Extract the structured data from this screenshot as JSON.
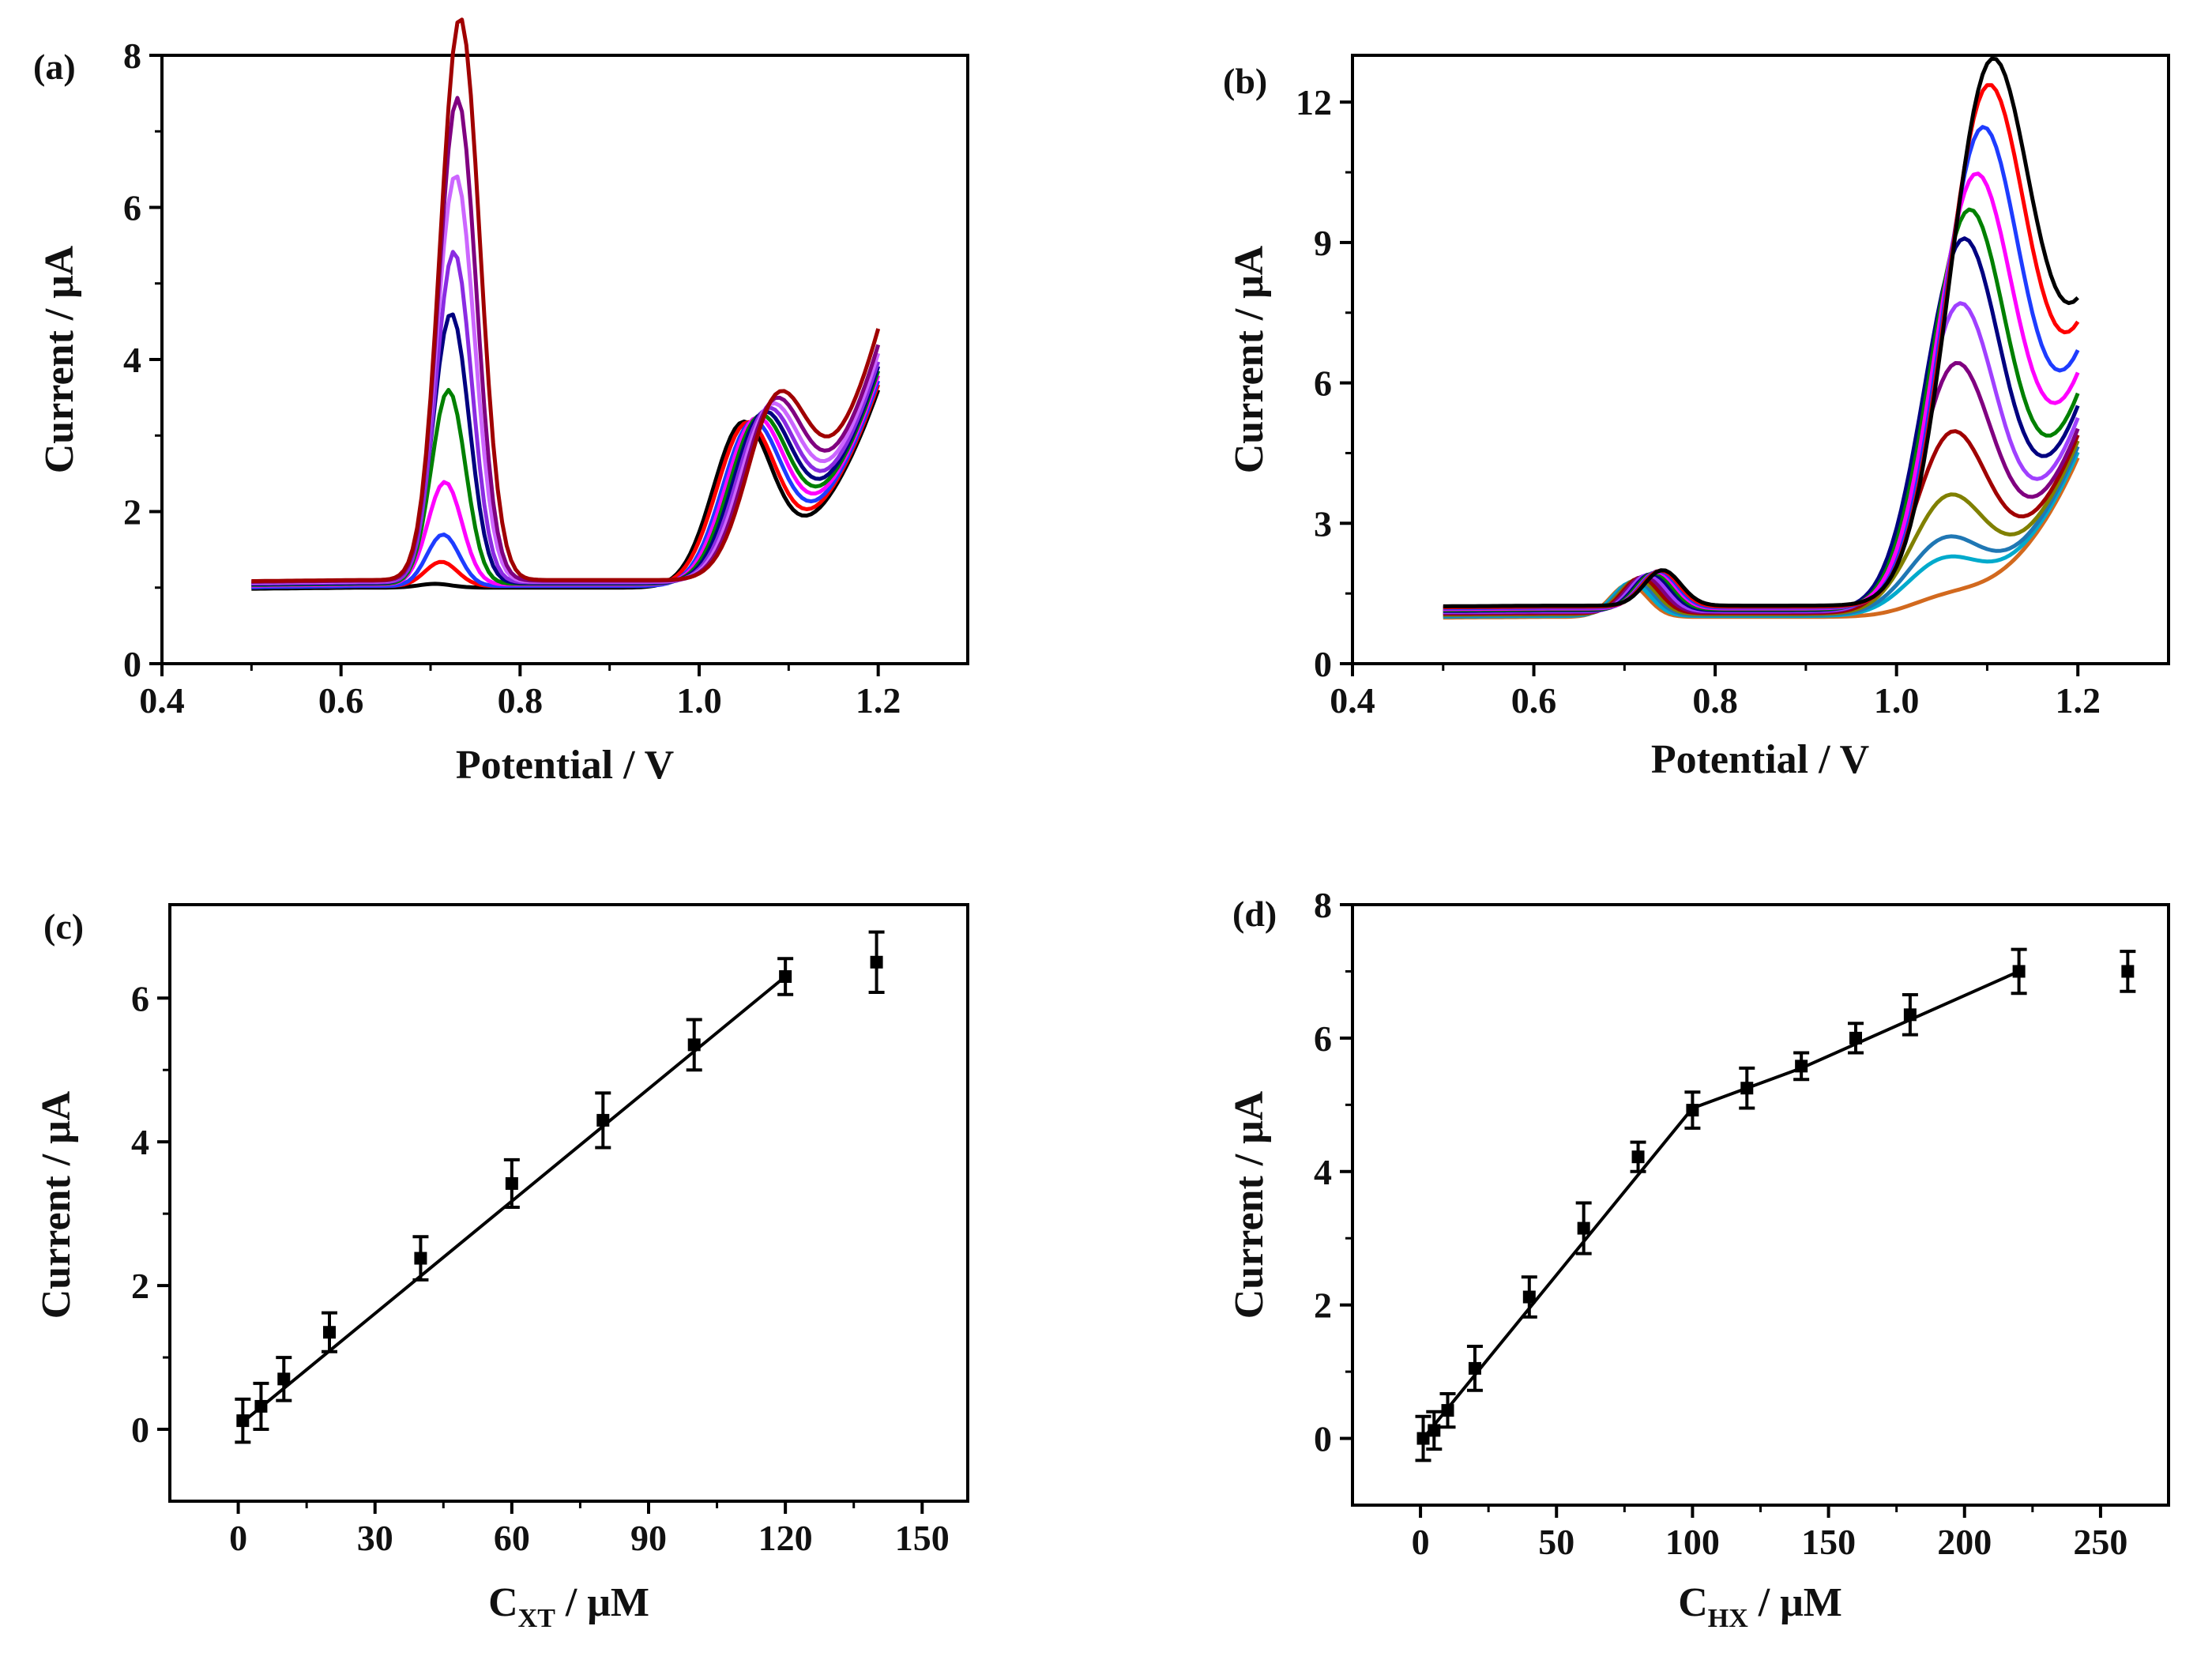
{
  "chart_data": [
    {
      "panel": "(a)",
      "type": "line",
      "xlabel": "Potential / V",
      "ylabel": "Current / μA",
      "xlim": [
        0.4,
        1.3
      ],
      "ylim": [
        0,
        8
      ],
      "xticks": [
        "0.4",
        "0.6",
        "0.8",
        "1.0",
        "1.2"
      ],
      "yticks": [
        "0",
        "2",
        "4",
        "6",
        "8"
      ],
      "series": [
        {
          "color": "#000000",
          "base": 1.0,
          "peak1": {
            "x": 0.705,
            "h": 0.05,
            "w": 0.018
          },
          "peak2": {
            "x": 1.048,
            "h": 2.05,
            "w": 0.033
          },
          "tail": 2.6
        },
        {
          "color": "#ff0000",
          "base": 1.02,
          "peak1": {
            "x": 0.712,
            "h": 0.32,
            "w": 0.018
          },
          "peak2": {
            "x": 1.052,
            "h": 2.0,
            "w": 0.033
          },
          "tail": 2.65
        },
        {
          "color": "#1e3cff",
          "base": 1.02,
          "peak1": {
            "x": 0.714,
            "h": 0.68,
            "w": 0.018
          },
          "peak2": {
            "x": 1.058,
            "h": 1.98,
            "w": 0.033
          },
          "tail": 2.7
        },
        {
          "color": "#ff00ff",
          "base": 1.04,
          "peak1": {
            "x": 0.716,
            "h": 1.35,
            "w": 0.019
          },
          "peak2": {
            "x": 1.062,
            "h": 1.98,
            "w": 0.033
          },
          "tail": 2.75
        },
        {
          "color": "#008000",
          "base": 1.05,
          "peak1": {
            "x": 0.72,
            "h": 2.55,
            "w": 0.019
          },
          "peak2": {
            "x": 1.066,
            "h": 1.97,
            "w": 0.033
          },
          "tail": 2.8
        },
        {
          "color": "#000080",
          "base": 1.06,
          "peak1": {
            "x": 0.723,
            "h": 3.55,
            "w": 0.02
          },
          "peak2": {
            "x": 1.07,
            "h": 1.97,
            "w": 0.033
          },
          "tail": 2.85
        },
        {
          "color": "#8a2be2",
          "base": 1.07,
          "peak1": {
            "x": 0.726,
            "h": 4.35,
            "w": 0.02
          },
          "peak2": {
            "x": 1.074,
            "h": 1.97,
            "w": 0.033
          },
          "tail": 2.9
        },
        {
          "color": "#cc66ff",
          "base": 1.08,
          "peak1": {
            "x": 0.728,
            "h": 5.35,
            "w": 0.021
          },
          "peak2": {
            "x": 1.078,
            "h": 1.97,
            "w": 0.033
          },
          "tail": 3.0
        },
        {
          "color": "#800080",
          "base": 1.09,
          "peak1": {
            "x": 0.73,
            "h": 6.35,
            "w": 0.021
          },
          "peak2": {
            "x": 1.082,
            "h": 1.98,
            "w": 0.033
          },
          "tail": 3.1
        },
        {
          "color": "#a00000",
          "base": 1.1,
          "peak1": {
            "x": 0.733,
            "h": 7.4,
            "w": 0.022
          },
          "peak2": {
            "x": 1.086,
            "h": 1.98,
            "w": 0.033
          },
          "tail": 3.3
        }
      ]
    },
    {
      "panel": "(b)",
      "type": "line",
      "xlabel": "Potential / V",
      "ylabel": "Current / μA",
      "xlim": [
        0.4,
        1.3
      ],
      "ylim": [
        0,
        13
      ],
      "xticks": [
        "0.4",
        "0.6",
        "0.8",
        "1.0",
        "1.2"
      ],
      "yticks": [
        "0",
        "3",
        "6",
        "9",
        "12"
      ],
      "series": [
        {
          "color": "#d2691e",
          "base": 1.0,
          "peak1": {
            "x": 0.705,
            "h": 0.7,
            "w": 0.02
          },
          "peak2": {
            "x": 1.05,
            "h": 0.3,
            "w": 0.04
          },
          "tail": 3.4
        },
        {
          "color": "#00aacc",
          "base": 1.02,
          "peak1": {
            "x": 0.708,
            "h": 0.72,
            "w": 0.02
          },
          "peak2": {
            "x": 1.05,
            "h": 1.05,
            "w": 0.04
          },
          "tail": 3.5
        },
        {
          "color": "#1f77b4",
          "base": 1.04,
          "peak1": {
            "x": 0.712,
            "h": 0.74,
            "w": 0.02
          },
          "peak2": {
            "x": 1.052,
            "h": 1.45,
            "w": 0.04
          },
          "tail": 3.6
        },
        {
          "color": "#808000",
          "base": 1.06,
          "peak1": {
            "x": 0.715,
            "h": 0.75,
            "w": 0.02
          },
          "peak2": {
            "x": 1.056,
            "h": 2.3,
            "w": 0.04
          },
          "tail": 3.7
        },
        {
          "color": "#a00000",
          "base": 1.08,
          "peak1": {
            "x": 0.718,
            "h": 0.76,
            "w": 0.02
          },
          "peak2": {
            "x": 1.06,
            "h": 3.6,
            "w": 0.04
          },
          "tail": 3.8
        },
        {
          "color": "#800080",
          "base": 1.1,
          "peak1": {
            "x": 0.722,
            "h": 0.77,
            "w": 0.02
          },
          "peak2": {
            "x": 1.064,
            "h": 5.0,
            "w": 0.041
          },
          "tail": 3.9
        },
        {
          "color": "#a040ff",
          "base": 1.12,
          "peak1": {
            "x": 0.726,
            "h": 0.78,
            "w": 0.02
          },
          "peak2": {
            "x": 1.068,
            "h": 6.2,
            "w": 0.041
          },
          "tail": 4.1
        },
        {
          "color": "#000080",
          "base": 1.14,
          "peak1": {
            "x": 0.73,
            "h": 0.78,
            "w": 0.02
          },
          "peak2": {
            "x": 1.072,
            "h": 7.5,
            "w": 0.042
          },
          "tail": 4.3
        },
        {
          "color": "#008000",
          "base": 1.16,
          "peak1": {
            "x": 0.733,
            "h": 0.78,
            "w": 0.02
          },
          "peak2": {
            "x": 1.078,
            "h": 8.0,
            "w": 0.042
          },
          "tail": 4.5
        },
        {
          "color": "#ff00ff",
          "base": 1.18,
          "peak1": {
            "x": 0.736,
            "h": 0.78,
            "w": 0.02
          },
          "peak2": {
            "x": 1.085,
            "h": 8.6,
            "w": 0.043
          },
          "tail": 4.8
        },
        {
          "color": "#1e3cff",
          "base": 1.2,
          "peak1": {
            "x": 0.738,
            "h": 0.78,
            "w": 0.02
          },
          "peak2": {
            "x": 1.092,
            "h": 9.4,
            "w": 0.043
          },
          "tail": 5.1
        },
        {
          "color": "#ff0000",
          "base": 1.22,
          "peak1": {
            "x": 0.74,
            "h": 0.77,
            "w": 0.02
          },
          "peak2": {
            "x": 1.098,
            "h": 10.1,
            "w": 0.044
          },
          "tail": 5.4
        },
        {
          "color": "#000000",
          "base": 1.24,
          "peak1": {
            "x": 0.742,
            "h": 0.76,
            "w": 0.02
          },
          "peak2": {
            "x": 1.102,
            "h": 10.5,
            "w": 0.045
          },
          "tail": 5.6
        }
      ]
    },
    {
      "panel": "(c)",
      "type": "scatter",
      "xlabel_main": "C",
      "xlabel_sub": "XT",
      "xlabel_unit": " / μM",
      "ylabel": "Current / μA",
      "xlim": [
        -15,
        160
      ],
      "ylim": [
        -1,
        7.3
      ],
      "xticks": [
        "0",
        "30",
        "60",
        "90",
        "120",
        "150"
      ],
      "yticks": [
        "0",
        "2",
        "4",
        "6"
      ],
      "points": [
        {
          "x": 1,
          "y": 0.12,
          "err": 0.3
        },
        {
          "x": 5,
          "y": 0.32,
          "err": 0.32
        },
        {
          "x": 10,
          "y": 0.7,
          "err": 0.3
        },
        {
          "x": 20,
          "y": 1.35,
          "err": 0.27
        },
        {
          "x": 40,
          "y": 2.38,
          "err": 0.3
        },
        {
          "x": 60,
          "y": 3.42,
          "err": 0.33
        },
        {
          "x": 80,
          "y": 4.3,
          "err": 0.38
        },
        {
          "x": 100,
          "y": 5.35,
          "err": 0.35
        },
        {
          "x": 120,
          "y": 6.3,
          "err": 0.25
        },
        {
          "x": 140,
          "y": 6.5,
          "err": 0.42
        }
      ],
      "fit": [
        [
          1,
          0.1
        ],
        [
          120,
          6.3
        ]
      ]
    },
    {
      "panel": "(d)",
      "type": "scatter",
      "xlabel_main": "C",
      "xlabel_sub": "HX",
      "xlabel_unit": " / μM",
      "ylabel": "Current / μA",
      "xlim": [
        -25,
        275
      ],
      "ylim": [
        -1,
        8
      ],
      "xticks": [
        "0",
        "50",
        "100",
        "150",
        "200",
        "250"
      ],
      "yticks": [
        "0",
        "2",
        "4",
        "6",
        "8"
      ],
      "points": [
        {
          "x": 1,
          "y": 0.0,
          "err": 0.33
        },
        {
          "x": 5,
          "y": 0.12,
          "err": 0.28
        },
        {
          "x": 10,
          "y": 0.42,
          "err": 0.25
        },
        {
          "x": 20,
          "y": 1.05,
          "err": 0.33
        },
        {
          "x": 40,
          "y": 2.12,
          "err": 0.3
        },
        {
          "x": 60,
          "y": 3.15,
          "err": 0.38
        },
        {
          "x": 80,
          "y": 4.22,
          "err": 0.22
        },
        {
          "x": 100,
          "y": 4.92,
          "err": 0.27
        },
        {
          "x": 120,
          "y": 5.25,
          "err": 0.3
        },
        {
          "x": 140,
          "y": 5.58,
          "err": 0.2
        },
        {
          "x": 160,
          "y": 6.0,
          "err": 0.22
        },
        {
          "x": 180,
          "y": 6.35,
          "err": 0.3
        },
        {
          "x": 220,
          "y": 7.0,
          "err": 0.33
        },
        {
          "x": 260,
          "y": 7.0,
          "err": 0.3
        }
      ],
      "fit": [
        [
          1,
          0.0
        ],
        [
          100,
          4.95
        ],
        [
          140,
          5.55
        ],
        [
          220,
          7.0
        ]
      ]
    }
  ]
}
